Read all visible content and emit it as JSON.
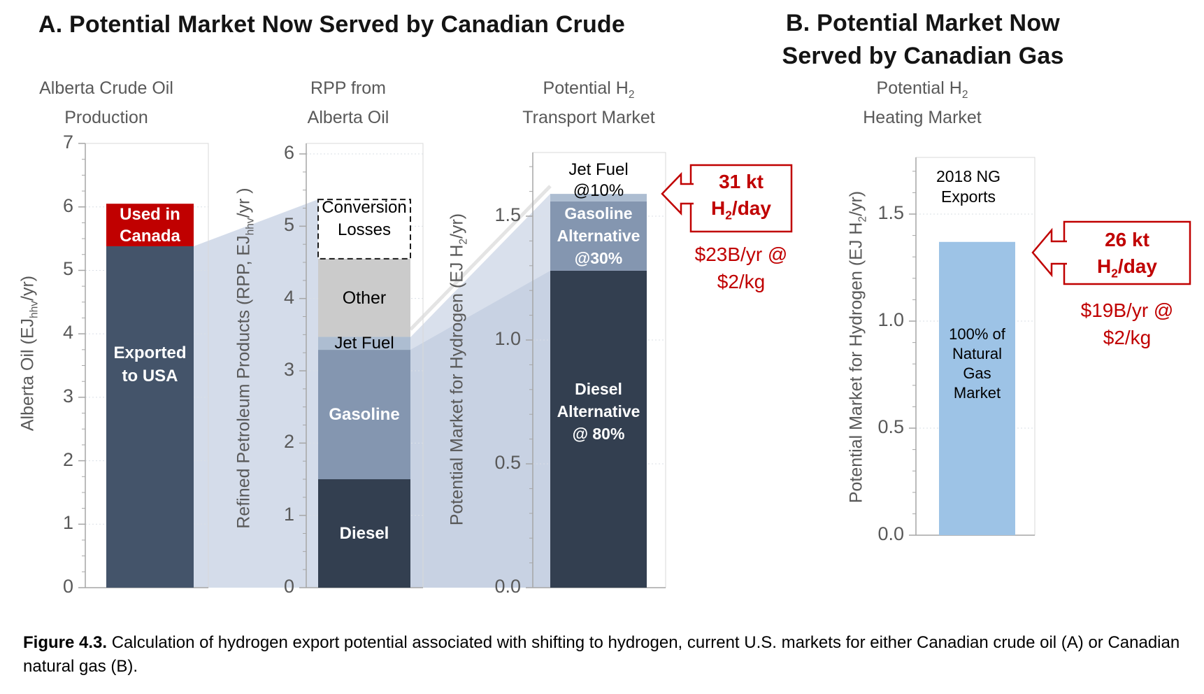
{
  "figure": {
    "panel_a_title": "A.  Potential Market Now Served by Canadian Crude",
    "panel_b_title_line1": "B.  Potential Market Now",
    "panel_b_title_line2": "Served by Canadian Gas",
    "caption_bold": "Figure 4.3.",
    "caption_text": " Calculation of hydrogen export potential associated with shifting to hydrogen, current U.S. markets for either Canadian crude oil (A) or Canadian natural gas (B)."
  },
  "colors": {
    "dark_blue": "#44546A",
    "red": "#C00000",
    "navy": "#333F50",
    "steel": "#8496B0",
    "light_steel": "#ADBDD1",
    "gray": "#CBCBCB",
    "white": "#FFFFFF",
    "light_blue": "#9DC3E6",
    "flow_band": "#B9C7DD",
    "annotation_red": "#C00000",
    "axis_text": "#595959"
  },
  "chart_data": [
    {
      "type": "bar",
      "id": "alberta-crude-oil-production",
      "subtitle": {
        "pre": "Alberta Crude Oil",
        "sub": "",
        "line2": "Production"
      },
      "ylabel": {
        "pre": "Alberta  Oil (EJ",
        "sub": "hhv",
        "post": "/yr)"
      },
      "ylim": [
        0,
        7
      ],
      "ytick_step": 1,
      "grid": true,
      "segments": [
        {
          "label": "Exported to USA",
          "lines": [
            "Exported",
            "to USA"
          ],
          "value": 5.38,
          "color": "dark_blue"
        },
        {
          "label": "Used in Canada",
          "lines": [
            "Used in",
            "Canada"
          ],
          "value": 0.67,
          "color": "red"
        }
      ]
    },
    {
      "type": "bar",
      "id": "rpp-from-alberta-oil",
      "subtitle": {
        "pre": "RPP from",
        "sub": "",
        "line2": "Alberta Oil"
      },
      "ylabel": {
        "pre": "Refined Petroleum Products (RPP, EJ",
        "sub": "hhv",
        "post": "/yr )"
      },
      "ylim": [
        0,
        6
      ],
      "ytick_step": 1,
      "grid": true,
      "segments": [
        {
          "label": "Diesel",
          "lines": [
            "Diesel"
          ],
          "value": 1.5,
          "color": "navy"
        },
        {
          "label": "Gasoline",
          "lines": [
            "Gasoline"
          ],
          "value": 1.79,
          "color": "steel"
        },
        {
          "label": "Jet Fuel",
          "lines": [
            "Jet Fuel"
          ],
          "value": 0.18,
          "color": "light_steel"
        },
        {
          "label": "Other",
          "lines": [
            "Other"
          ],
          "value": 1.08,
          "color": "gray"
        },
        {
          "label": "Conversion Losses",
          "lines": [
            "Conversion",
            "Losses"
          ],
          "value": 0.82,
          "color": "white",
          "dashed": true
        }
      ]
    },
    {
      "type": "bar",
      "id": "potential-h2-transport-market",
      "subtitle": {
        "pre": "Potential H",
        "sub": "2",
        "line2": "Transport Market"
      },
      "ylabel": {
        "pre": "Potential Market for Hydrogen (EJ H",
        "sub": "2",
        "post": "/yr)"
      },
      "ylim": [
        0,
        1.75
      ],
      "ytick_step": 0.5,
      "grid": true,
      "top_label": [
        "Jet Fuel",
        "@10%"
      ],
      "segments": [
        {
          "label": "Diesel Alternative @ 80%",
          "lines": [
            "Diesel",
            "Alternative",
            "@ 80%"
          ],
          "value": 1.28,
          "color": "navy"
        },
        {
          "label": "Gasoline Alternative @30%",
          "lines": [
            "Gasoline",
            "Alternative",
            "@30%"
          ],
          "value": 0.28,
          "color": "steel"
        },
        {
          "label": "Jet Fuel @10%",
          "lines": [],
          "value": 0.03,
          "color": "light_steel"
        }
      ]
    },
    {
      "type": "bar",
      "id": "potential-h2-heating-market",
      "subtitle": {
        "pre": "Potential H",
        "sub": "2",
        "line2": "Heating Market"
      },
      "ylabel": {
        "pre": "Potential Market for Hydrogen (EJ H",
        "sub": "2",
        "post": "/yr)"
      },
      "ylim": [
        0,
        1.75
      ],
      "ytick_step": 0.5,
      "grid": true,
      "top_label": [
        "2018 NG",
        "Exports"
      ],
      "segments": [
        {
          "label": "100% of Natural Gas Market",
          "lines": [
            "100% of",
            "Natural",
            "Gas",
            "Market"
          ],
          "value": 1.37,
          "color": "light_blue"
        }
      ]
    }
  ],
  "callouts": [
    {
      "line1": "31 kt",
      "line2_pre": "H",
      "line2_sub": "2",
      "line2_post": "/day",
      "price_line1": "$23B/yr @",
      "price_line2": "$2/kg"
    },
    {
      "line1": "26 kt",
      "line2_pre": "H",
      "line2_sub": "2",
      "line2_post": "/day",
      "price_line1": "$19B/yr @",
      "price_line2": "$2/kg"
    }
  ]
}
